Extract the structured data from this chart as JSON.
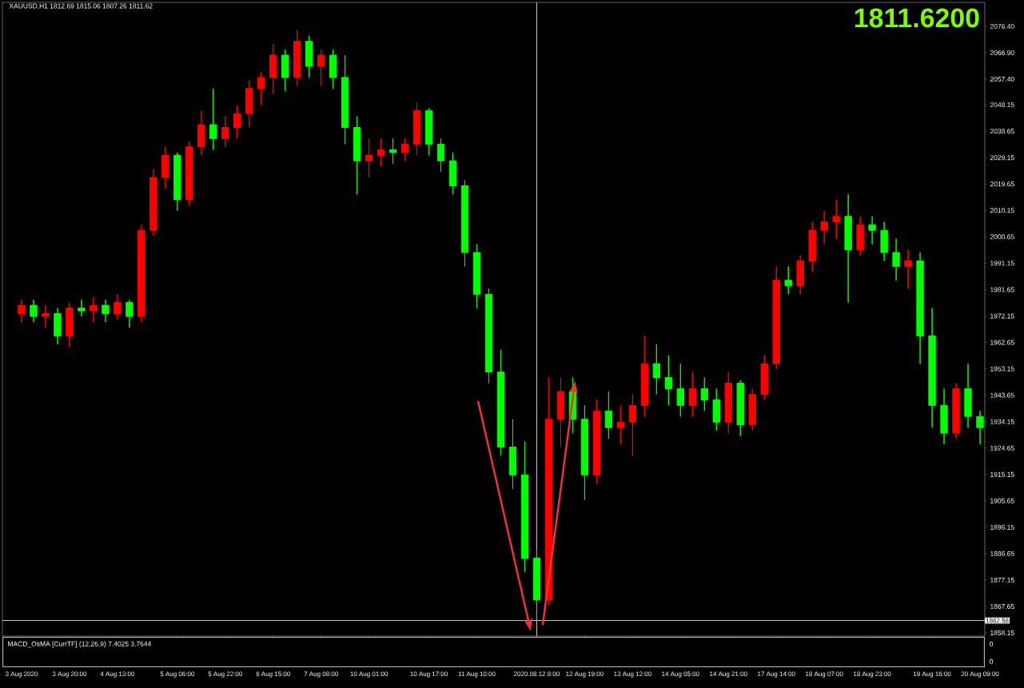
{
  "chart_data": [
    {
      "type": "candlestick",
      "title": "XAUUSD,H1  1812.69 1815.06 1807.26 1811.62",
      "categories": [
        "3 Aug 2020",
        null,
        null,
        null,
        "3 Aug 20:00",
        null,
        null,
        null,
        "4 Aug 13:00",
        null,
        null,
        null,
        null,
        "5 Aug 06:00",
        null,
        null,
        null,
        "5 Aug 22:00",
        null,
        null,
        null,
        "6 Aug 15:00",
        null,
        null,
        null,
        "7 Aug 08:00",
        null,
        null,
        null,
        "10 Aug 01:00",
        null,
        null,
        null,
        null,
        "10 Aug 17:00",
        null,
        null,
        null,
        "11 Aug 10:00",
        null,
        null,
        null,
        null,
        "2020.08.12 8:00",
        null,
        null,
        null,
        "12 Aug 19:00",
        null,
        null,
        null,
        "13 Aug 12:00",
        null,
        null,
        null,
        "14 Aug 05:00",
        null,
        null,
        null,
        "14 Aug 21:00",
        null,
        null,
        null,
        "17 Aug 14:00",
        null,
        null,
        null,
        "18 Aug 07:00",
        null,
        null,
        null,
        "18 Aug 23:00",
        null,
        null,
        null,
        null,
        "19 Aug 16:00",
        null,
        null,
        null,
        "20 Aug 09:00"
      ],
      "ohlc": [
        [
          1973,
          1978,
          1970,
          1976
        ],
        [
          1976,
          1978,
          1970,
          1972
        ],
        [
          1972,
          1976,
          1968,
          1973
        ],
        [
          1973,
          1975,
          1962,
          1965
        ],
        [
          1965,
          1977,
          1961,
          1975
        ],
        [
          1975,
          1978,
          1972,
          1974
        ],
        [
          1974,
          1979,
          1970,
          1976
        ],
        [
          1976,
          1978,
          1970,
          1973
        ],
        [
          1973,
          1980,
          1971,
          1977
        ],
        [
          1977,
          1978,
          1968,
          1972
        ],
        [
          1972,
          2005,
          1970,
          2003
        ],
        [
          2003,
          2025,
          2001,
          2022
        ],
        [
          2022,
          2033,
          2018,
          2030
        ],
        [
          2030,
          2031,
          2010,
          2014
        ],
        [
          2014,
          2035,
          2012,
          2033
        ],
        [
          2033,
          2046,
          2030,
          2041
        ],
        [
          2041,
          2054,
          2032,
          2036
        ],
        [
          2036,
          2044,
          2033,
          2040
        ],
        [
          2040,
          2048,
          2036,
          2045
        ],
        [
          2045,
          2057,
          2040,
          2054
        ],
        [
          2054,
          2060,
          2048,
          2058
        ],
        [
          2058,
          2070,
          2052,
          2066
        ],
        [
          2066,
          2068,
          2053,
          2058
        ],
        [
          2058,
          2075,
          2055,
          2071
        ],
        [
          2071,
          2073,
          2058,
          2062
        ],
        [
          2062,
          2068,
          2055,
          2066
        ],
        [
          2066,
          2068,
          2054,
          2058
        ],
        [
          2058,
          2066,
          2034,
          2040
        ],
        [
          2040,
          2044,
          2016,
          2028
        ],
        [
          2028,
          2036,
          2022,
          2030
        ],
        [
          2030,
          2036,
          2026,
          2032
        ],
        [
          2032,
          2036,
          2027,
          2031
        ],
        [
          2031,
          2036,
          2028,
          2034
        ],
        [
          2034,
          2049,
          2030,
          2046
        ],
        [
          2046,
          2047,
          2030,
          2034
        ],
        [
          2034,
          2036,
          2024,
          2028
        ],
        [
          2028,
          2031,
          2016,
          2019
        ],
        [
          2019,
          2021,
          1990,
          1995
        ],
        [
          1995,
          1998,
          1975,
          1980
        ],
        [
          1980,
          1982,
          1948,
          1952
        ],
        [
          1952,
          1960,
          1922,
          1925
        ],
        [
          1925,
          1935,
          1910,
          1915
        ],
        [
          1915,
          1927,
          1880,
          1885
        ],
        [
          1885,
          1888,
          1862.58,
          1870
        ],
        [
          1870,
          1950,
          1868,
          1935
        ],
        [
          1935,
          1950,
          1925,
          1945
        ],
        [
          1945,
          1950,
          1930,
          1935
        ],
        [
          1935,
          1940,
          1906,
          1915
        ],
        [
          1915,
          1942,
          1912,
          1938
        ],
        [
          1938,
          1945,
          1928,
          1932
        ],
        [
          1932,
          1940,
          1926,
          1934
        ],
        [
          1934,
          1944,
          1922,
          1940
        ],
        [
          1940,
          1965,
          1936,
          1955
        ],
        [
          1955,
          1962,
          1944,
          1950
        ],
        [
          1950,
          1958,
          1940,
          1946
        ],
        [
          1946,
          1955,
          1936,
          1940
        ],
        [
          1940,
          1952,
          1936,
          1946
        ],
        [
          1946,
          1950,
          1938,
          1942
        ],
        [
          1942,
          1946,
          1931,
          1934
        ],
        [
          1934,
          1952,
          1930,
          1948
        ],
        [
          1948,
          1949,
          1929,
          1933
        ],
        [
          1933,
          1946,
          1931,
          1944
        ],
        [
          1944,
          1958,
          1942,
          1955
        ],
        [
          1955,
          1990,
          1953,
          1985
        ],
        [
          1985,
          1990,
          1980,
          1983
        ],
        [
          1983,
          1994,
          1980,
          1992
        ],
        [
          1992,
          2006,
          1988,
          2003
        ],
        [
          2003,
          2010,
          1998,
          2006
        ],
        [
          2006,
          2014,
          2000,
          2008
        ],
        [
          2008,
          2016,
          1977,
          1996
        ],
        [
          1996,
          2008,
          1994,
          2005
        ],
        [
          2005,
          2008,
          1998,
          2003
        ],
        [
          2003,
          2006,
          1992,
          1995
        ],
        [
          1995,
          2000,
          1985,
          1990
        ],
        [
          1990,
          1996,
          1982,
          1992
        ],
        [
          1992,
          1995,
          1955,
          1965
        ],
        [
          1965,
          1975,
          1932,
          1940
        ],
        [
          1940,
          1946,
          1926,
          1930
        ],
        [
          1930,
          1948,
          1928,
          1946
        ],
        [
          1946,
          1955,
          1932,
          1936
        ],
        [
          1936,
          1938,
          1926,
          1932
        ]
      ],
      "colors": [
        "#ff0000",
        "#00ff00",
        "#ff0000",
        "#00ff00",
        "#ff0000",
        "#00ff00",
        "#ff0000",
        "#00ff00",
        "#ff0000",
        "#00ff00",
        "#ff0000",
        "#ff0000",
        "#ff0000",
        "#00ff00",
        "#ff0000",
        "#ff0000",
        "#00ff00",
        "#ff0000",
        "#ff0000",
        "#ff0000",
        "#ff0000",
        "#ff0000",
        "#00ff00",
        "#ff0000",
        "#00ff00",
        "#ff0000",
        "#00ff00",
        "#00ff00",
        "#00ff00",
        "#ff0000",
        "#ff0000",
        "#00ff00",
        "#ff0000",
        "#ff0000",
        "#00ff00",
        "#00ff00",
        "#00ff00",
        "#00ff00",
        "#00ff00",
        "#00ff00",
        "#00ff00",
        "#00ff00",
        "#00ff00",
        "#00ff00",
        "#ff0000",
        "#ff0000",
        "#00ff00",
        "#00ff00",
        "#ff0000",
        "#00ff00",
        "#ff0000",
        "#ff0000",
        "#ff0000",
        "#00ff00",
        "#00ff00",
        "#00ff00",
        "#ff0000",
        "#00ff00",
        "#00ff00",
        "#ff0000",
        "#00ff00",
        "#ff0000",
        "#ff0000",
        "#ff0000",
        "#00ff00",
        "#ff0000",
        "#ff0000",
        "#ff0000",
        "#ff0000",
        "#00ff00",
        "#ff0000",
        "#00ff00",
        "#00ff00",
        "#00ff00",
        "#ff0000",
        "#00ff00",
        "#00ff00",
        "#00ff00",
        "#ff0000",
        "#00ff00",
        "#00ff00"
      ],
      "ylim": [
        1857,
        2085
      ],
      "yticks": [
        {
          "value": 2076.4,
          "label": "2076.40"
        },
        {
          "value": 2066.9,
          "label": "2066.90"
        },
        {
          "value": 2057.4,
          "label": "2057.40"
        },
        2048.15,
        2038.65,
        2029.15,
        2019.65,
        2010.15,
        2000.65,
        1991.15,
        1981.65,
        1972.15,
        1962.65,
        1953.15,
        1943.65,
        1934.15,
        1924.65,
        1915.15,
        1905.65,
        1896.15,
        1886.65,
        1877.15,
        1867.65,
        1858.15
      ],
      "ref_lines": [
        {
          "axis": "y",
          "value": 1862.58,
          "label": "1862.58",
          "color": "#ffffff"
        },
        {
          "axis": "x",
          "value": "2020.08.12 8:00",
          "color": "#ffffff"
        }
      ],
      "annotations": [
        "1811.6200"
      ]
    },
    {
      "type": "other",
      "title": "MACD_OsMA [CurrTF] (12,26,9) 7.4025 3.7644",
      "annotations": [
        "0",
        "0"
      ]
    }
  ]
}
